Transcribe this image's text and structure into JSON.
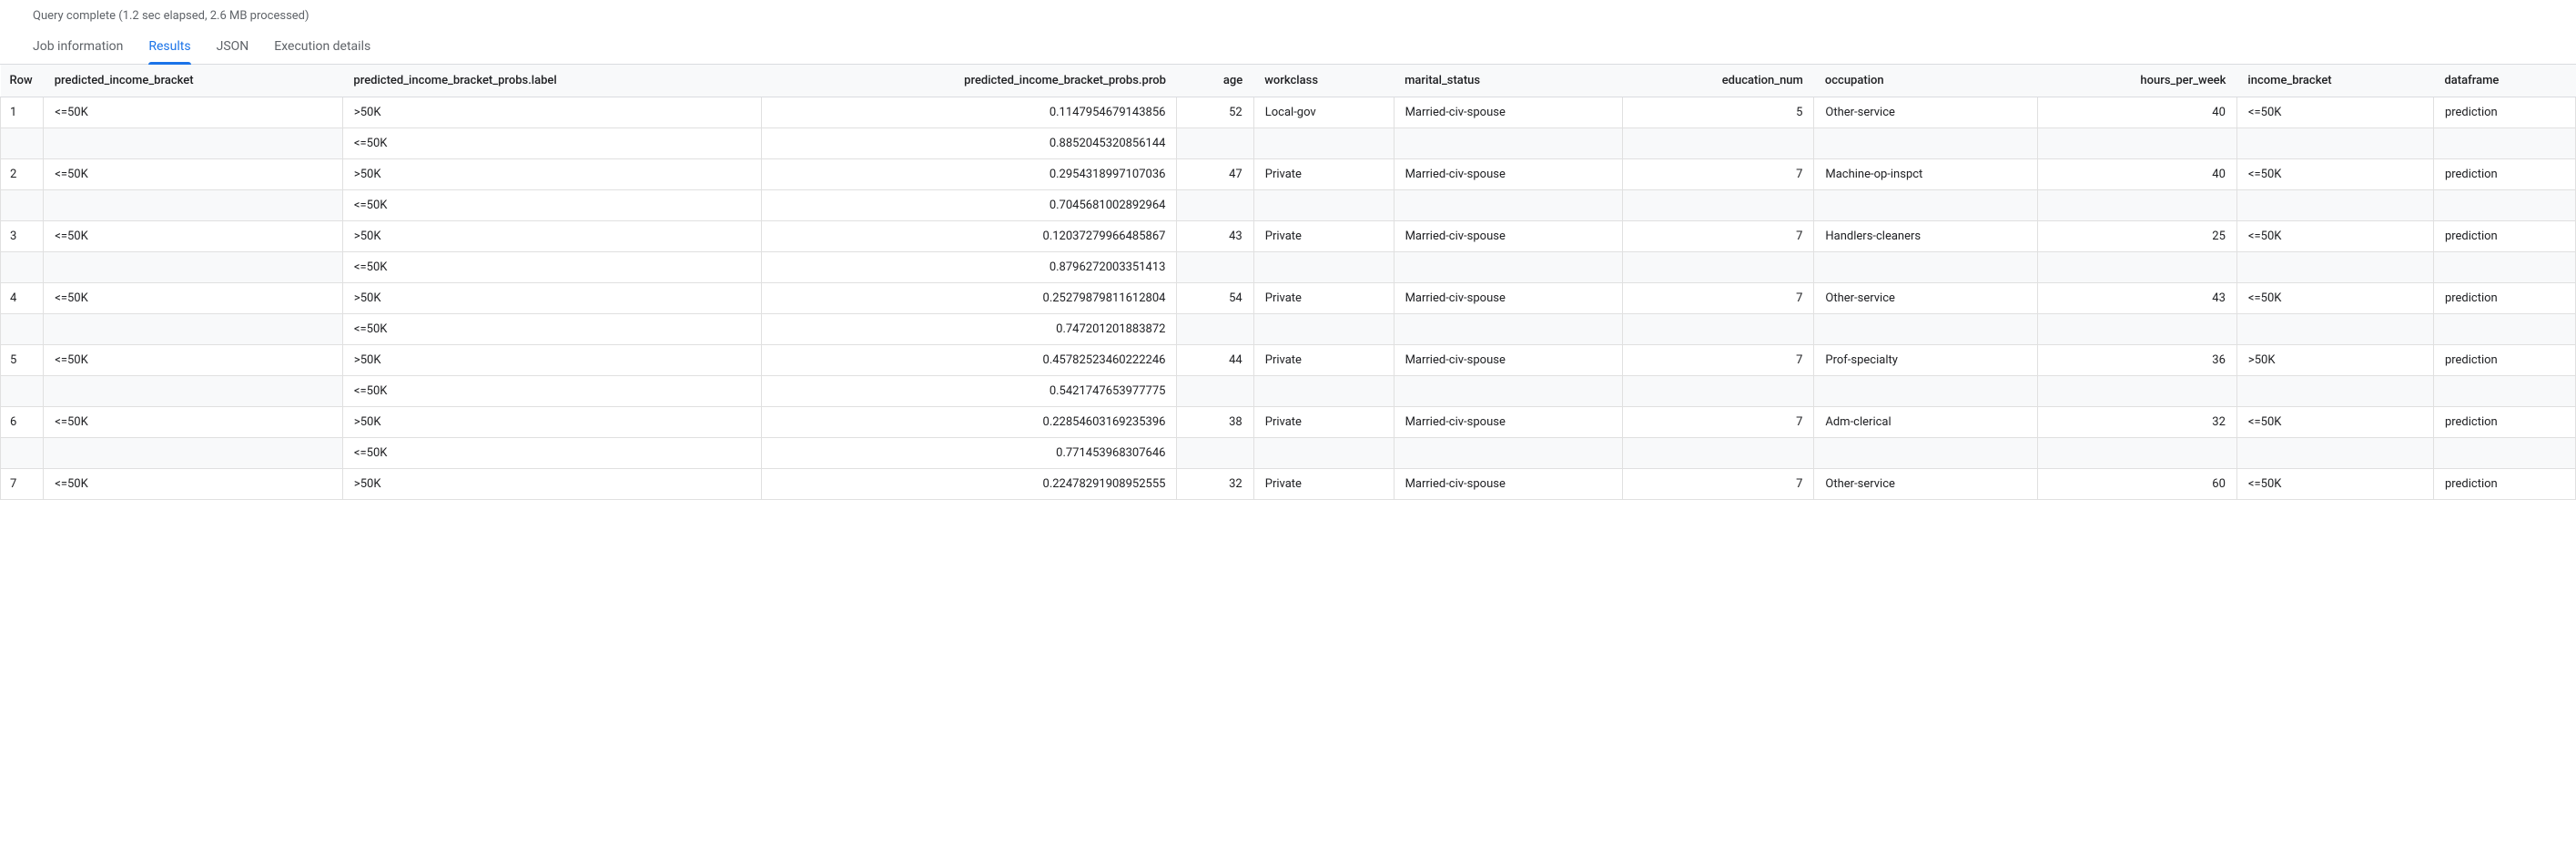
{
  "status": "Query complete (1.2 sec elapsed, 2.6 MB processed)",
  "tabs": {
    "job_info": "Job information",
    "results": "Results",
    "json": "JSON",
    "exec": "Execution details"
  },
  "columns": {
    "row": "Row",
    "predicted_income_bracket": "predicted_income_bracket",
    "probs_label": "predicted_income_bracket_probs.label",
    "probs_prob": "predicted_income_bracket_probs.prob",
    "age": "age",
    "workclass": "workclass",
    "marital_status": "marital_status",
    "education_num": "education_num",
    "occupation": "occupation",
    "hours_per_week": "hours_per_week",
    "income_bracket": "income_bracket",
    "dataframe": "dataframe"
  },
  "rows": [
    {
      "n": "1",
      "predicted_income_bracket": "<=50K",
      "probs": [
        {
          "label": ">50K",
          "prob": "0.1147954679143856"
        },
        {
          "label": "<=50K",
          "prob": "0.8852045320856144"
        }
      ],
      "age": "52",
      "workclass": "Local-gov",
      "marital_status": "Married-civ-spouse",
      "education_num": "5",
      "occupation": "Other-service",
      "hours_per_week": "40",
      "income_bracket": "<=50K",
      "dataframe": "prediction"
    },
    {
      "n": "2",
      "predicted_income_bracket": "<=50K",
      "probs": [
        {
          "label": ">50K",
          "prob": "0.2954318997107036"
        },
        {
          "label": "<=50K",
          "prob": "0.7045681002892964"
        }
      ],
      "age": "47",
      "workclass": "Private",
      "marital_status": "Married-civ-spouse",
      "education_num": "7",
      "occupation": "Machine-op-inspct",
      "hours_per_week": "40",
      "income_bracket": "<=50K",
      "dataframe": "prediction"
    },
    {
      "n": "3",
      "predicted_income_bracket": "<=50K",
      "probs": [
        {
          "label": ">50K",
          "prob": "0.12037279966485867"
        },
        {
          "label": "<=50K",
          "prob": "0.8796272003351413"
        }
      ],
      "age": "43",
      "workclass": "Private",
      "marital_status": "Married-civ-spouse",
      "education_num": "7",
      "occupation": "Handlers-cleaners",
      "hours_per_week": "25",
      "income_bracket": "<=50K",
      "dataframe": "prediction"
    },
    {
      "n": "4",
      "predicted_income_bracket": "<=50K",
      "probs": [
        {
          "label": ">50K",
          "prob": "0.25279879811612804"
        },
        {
          "label": "<=50K",
          "prob": "0.747201201883872"
        }
      ],
      "age": "54",
      "workclass": "Private",
      "marital_status": "Married-civ-spouse",
      "education_num": "7",
      "occupation": "Other-service",
      "hours_per_week": "43",
      "income_bracket": "<=50K",
      "dataframe": "prediction"
    },
    {
      "n": "5",
      "predicted_income_bracket": "<=50K",
      "probs": [
        {
          "label": ">50K",
          "prob": "0.45782523460222246"
        },
        {
          "label": "<=50K",
          "prob": "0.5421747653977775"
        }
      ],
      "age": "44",
      "workclass": "Private",
      "marital_status": "Married-civ-spouse",
      "education_num": "7",
      "occupation": "Prof-specialty",
      "hours_per_week": "36",
      "income_bracket": ">50K",
      "dataframe": "prediction"
    },
    {
      "n": "6",
      "predicted_income_bracket": "<=50K",
      "probs": [
        {
          "label": ">50K",
          "prob": "0.22854603169235396"
        },
        {
          "label": "<=50K",
          "prob": "0.771453968307646"
        }
      ],
      "age": "38",
      "workclass": "Private",
      "marital_status": "Married-civ-spouse",
      "education_num": "7",
      "occupation": "Adm-clerical",
      "hours_per_week": "32",
      "income_bracket": "<=50K",
      "dataframe": "prediction"
    },
    {
      "n": "7",
      "predicted_income_bracket": "<=50K",
      "probs": [
        {
          "label": ">50K",
          "prob": "0.22478291908952555"
        }
      ],
      "age": "32",
      "workclass": "Private",
      "marital_status": "Married-civ-spouse",
      "education_num": "7",
      "occupation": "Other-service",
      "hours_per_week": "60",
      "income_bracket": "<=50K",
      "dataframe": "prediction"
    }
  ]
}
